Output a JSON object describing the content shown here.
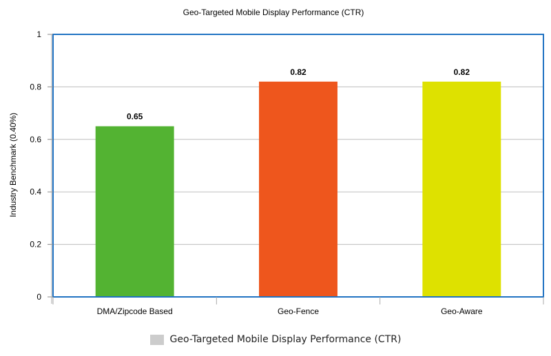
{
  "chart_data": {
    "type": "bar",
    "title": "Geo-Targeted Mobile Display Performance (CTR)",
    "xlabel": "",
    "ylabel": "Industry Benchmark (0.40%)",
    "categories": [
      "DMA/Zipcode Based",
      "Geo-Fence",
      "Geo-Aware"
    ],
    "values": [
      0.65,
      0.82,
      0.82
    ],
    "data_labels": [
      "0.65",
      "0.82",
      "0.82"
    ],
    "bar_colors": [
      "#53b332",
      "#ee561d",
      "#dee100"
    ],
    "ylim": [
      0,
      1
    ],
    "yticks": [
      0,
      0.2,
      0.4,
      0.6,
      0.8,
      1
    ],
    "ytick_labels": [
      "0",
      "0.2",
      "0.4",
      "0.6",
      "0.8",
      "1"
    ],
    "grid": true,
    "legend": {
      "position": "bottom-center",
      "label": "Geo-Targeted Mobile Display Performance (CTR)",
      "color": "#cccccc"
    },
    "frame_color": "#1f72c2",
    "grid_color": "#bdbdbd"
  }
}
